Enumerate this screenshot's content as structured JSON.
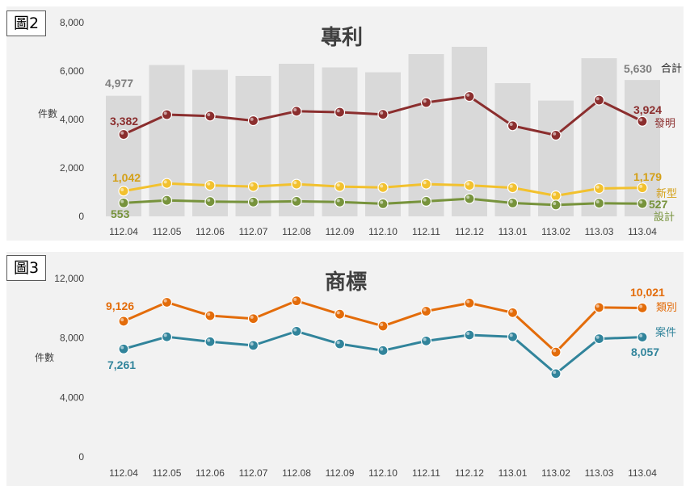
{
  "chart_data": [
    {
      "type": "bar+line",
      "badge": "圖2",
      "title": "專利",
      "ylabel": "件數",
      "categories": [
        "112.04",
        "112.05",
        "112.06",
        "112.07",
        "112.08",
        "112.09",
        "112.10",
        "112.11",
        "112.12",
        "113.01",
        "113.02",
        "113.03",
        "113.04"
      ],
      "y_ticks": [
        "0",
        "2,000",
        "4,000",
        "6,000",
        "8,000"
      ],
      "ylim": [
        0,
        8000
      ],
      "bars": {
        "name": "合計",
        "color": "#d9d9d9",
        "values": [
          4977,
          6250,
          6050,
          5800,
          6300,
          6150,
          5950,
          6700,
          7000,
          5500,
          4780,
          6530,
          5630
        ]
      },
      "series": [
        {
          "name": "發明",
          "color": "#8b2e2e",
          "values": [
            3382,
            4200,
            4140,
            3950,
            4340,
            4300,
            4210,
            4700,
            4950,
            3740,
            3350,
            4800,
            3924
          ]
        },
        {
          "name": "新型",
          "color": "#f2c12e",
          "values": [
            1042,
            1360,
            1280,
            1230,
            1330,
            1230,
            1190,
            1330,
            1280,
            1180,
            850,
            1150,
            1179
          ]
        },
        {
          "name": "設計",
          "color": "#77933c",
          "values": [
            553,
            660,
            610,
            590,
            620,
            590,
            520,
            620,
            730,
            550,
            470,
            540,
            527
          ]
        }
      ],
      "labels": {
        "bars_first": "4,977",
        "bars_last": "5,630",
        "s0_first": "3,382",
        "s0_last": "3,924",
        "s1_first": "1,042",
        "s1_last": "1,179",
        "s2_first": "553",
        "s2_last": "527"
      }
    },
    {
      "type": "line",
      "badge": "圖3",
      "title": "商標",
      "ylabel": "件數",
      "categories": [
        "112.04",
        "112.05",
        "112.06",
        "112.07",
        "112.08",
        "112.09",
        "112.10",
        "112.11",
        "112.12",
        "113.01",
        "113.02",
        "113.03",
        "113.04"
      ],
      "y_ticks": [
        "0",
        "4,000",
        "8,000",
        "12,000"
      ],
      "ylim": [
        0,
        12000
      ],
      "series": [
        {
          "name": "類別",
          "color": "#e36c0a",
          "values": [
            9126,
            10400,
            9500,
            9300,
            10500,
            9600,
            8800,
            9800,
            10350,
            9700,
            7050,
            10050,
            10021
          ]
        },
        {
          "name": "案件",
          "color": "#31849b",
          "values": [
            7261,
            8080,
            7750,
            7500,
            8450,
            7600,
            7150,
            7800,
            8200,
            8080,
            5600,
            7950,
            8057
          ]
        }
      ],
      "labels": {
        "s0_first": "9,126",
        "s0_last": "10,021",
        "s1_first": "7,261",
        "s1_last": "8,057"
      }
    }
  ]
}
